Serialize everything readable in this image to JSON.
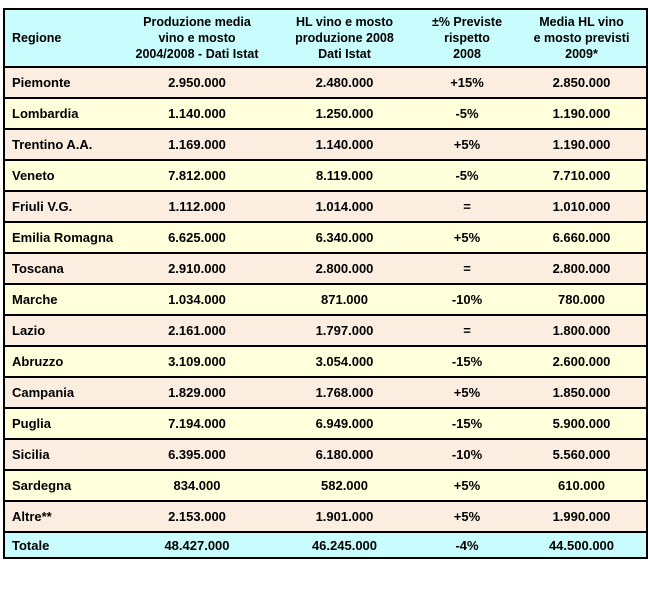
{
  "colors": {
    "header_bg": "#C9FCFC",
    "total_bg": "#C9FCFC",
    "row_alt_peach": "#FBEEE1",
    "row_alt_yellow": "#FFFFDC",
    "border": "#000000",
    "text": "#000000"
  },
  "chart_data": {
    "type": "table",
    "columns": [
      {
        "id": "regione",
        "label": "Regione"
      },
      {
        "id": "produzione_media_2004_2008",
        "label": "Produzione media\nvino e mosto\n2004/2008 - Dati Istat"
      },
      {
        "id": "hl_produzione_2008",
        "label": "HL vino e mosto\nproduzione 2008\nDati Istat"
      },
      {
        "id": "pct_previste_rispetto_2008",
        "label": "±% Previste\nrispetto\n2008"
      },
      {
        "id": "media_hl_previsti_2009",
        "label": "Media HL vino\ne mosto previsti\n2009*"
      }
    ],
    "rows": [
      [
        "Piemonte",
        "2.950.000",
        "2.480.000",
        "+15%",
        "2.850.000"
      ],
      [
        "Lombardia",
        "1.140.000",
        "1.250.000",
        "-5%",
        "1.190.000"
      ],
      [
        "Trentino A.A.",
        "1.169.000",
        "1.140.000",
        "+5%",
        "1.190.000"
      ],
      [
        "Veneto",
        "7.812.000",
        "8.119.000",
        "-5%",
        "7.710.000"
      ],
      [
        "Friuli V.G.",
        "1.112.000",
        "1.014.000",
        "=",
        "1.010.000"
      ],
      [
        "Emilia Romagna",
        "6.625.000",
        "6.340.000",
        "+5%",
        "6.660.000"
      ],
      [
        "Toscana",
        "2.910.000",
        "2.800.000",
        "=",
        "2.800.000"
      ],
      [
        "Marche",
        "1.034.000",
        "871.000",
        "-10%",
        "780.000"
      ],
      [
        "Lazio",
        "2.161.000",
        "1.797.000",
        "=",
        "1.800.000"
      ],
      [
        "Abruzzo",
        "3.109.000",
        "3.054.000",
        "-15%",
        "2.600.000"
      ],
      [
        "Campania",
        "1.829.000",
        "1.768.000",
        "+5%",
        "1.850.000"
      ],
      [
        "Puglia",
        "7.194.000",
        "6.949.000",
        "-15%",
        "5.900.000"
      ],
      [
        "Sicilia",
        "6.395.000",
        "6.180.000",
        "-10%",
        "5.560.000"
      ],
      [
        "Sardegna",
        "834.000",
        "582.000",
        "+5%",
        "610.000"
      ],
      [
        "Altre**",
        "2.153.000",
        "1.901.000",
        "+5%",
        "1.990.000"
      ]
    ],
    "total_row": [
      "Totale",
      "48.427.000",
      "46.245.000",
      "-4%",
      "44.500.000"
    ]
  }
}
